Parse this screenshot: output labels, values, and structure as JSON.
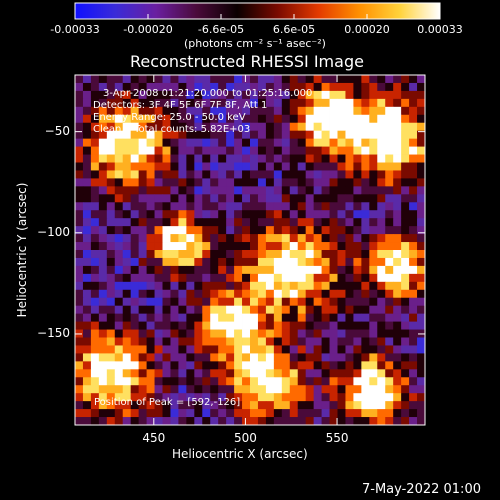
{
  "colorbar": {
    "ticks": [
      "-0.00033",
      "-0.00020",
      "-6.6e-05",
      "6.6e-05",
      "0.00020",
      "0.00033"
    ],
    "units": "(photons cm⁻² s⁻¹ asec⁻²)",
    "stops": [
      "#1010ff",
      "#3a2bd8",
      "#6a1fa0",
      "#4a0a3a",
      "#0a0000",
      "#7a0a00",
      "#e33a00",
      "#ff8f00",
      "#ffd23a",
      "#ffffff"
    ]
  },
  "image": {
    "title": "Reconstructed RHESSI Image",
    "info_lines": [
      "3-Apr-2008 01:21:20.000 to 01:25:16.000",
      "Detectors: 3F 4F 5F 6F 7F 8F, Att 1",
      "Energy Range: 25.0 - 50.0 keV",
      "Clean    Total counts: 5.82E+03"
    ],
    "peak_label": "Position of Peak = [592,-126]"
  },
  "chart_data": {
    "type": "heatmap",
    "title": "Reconstructed RHESSI Image",
    "xlabel": "Heliocentric X (arcsec)",
    "ylabel": "Heliocentric Y (arcsec)",
    "xlim": [
      407,
      598
    ],
    "ylim": [
      -195,
      -22
    ],
    "x_ticks": [
      450,
      500,
      550
    ],
    "y_ticks": [
      -50,
      -100,
      -150
    ],
    "x_tick_labels": [
      "450",
      "500",
      "550"
    ],
    "y_tick_labels": [
      "−50",
      "−100",
      "−150"
    ],
    "colorbar_range": [
      -0.00033,
      0.00033
    ],
    "peak_position": [
      592,
      -126
    ]
  },
  "footer": {
    "date": "7-May-2022 01:00"
  }
}
